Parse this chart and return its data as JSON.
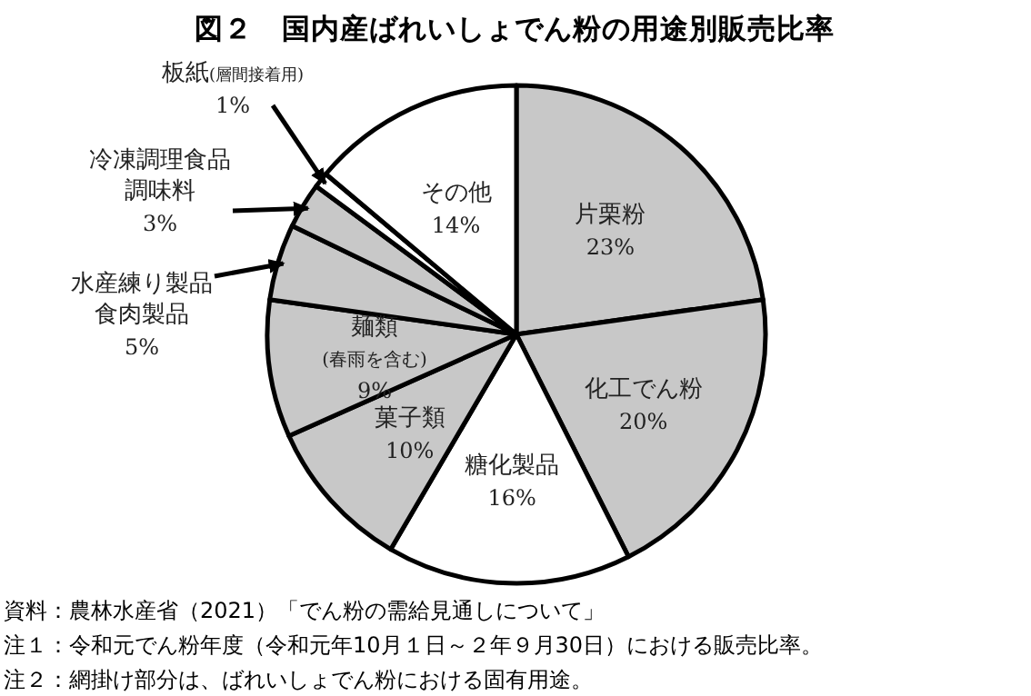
{
  "chart_data": {
    "type": "pie",
    "title": "図２　国内産ばれいしょでん粉の用途別販売比率",
    "categories": [
      "片栗粉",
      "化工でん粉",
      "糖化製品",
      "菓子類",
      "麺類(春雨を含む)",
      "水産練り製品食肉製品",
      "冷凍調理食品調味料",
      "板紙(層間接着用)",
      "その他"
    ],
    "values": [
      23,
      20,
      16,
      10,
      9,
      5,
      3,
      1,
      14
    ],
    "value_labels": [
      "23%",
      "20%",
      "16%",
      "10%",
      "9%",
      "5%",
      "3%",
      "1%",
      "14%"
    ],
    "colors": [
      "#c8c8c8",
      "#c8c8c8",
      "#ffffff",
      "#c8c8c8",
      "#c8c8c8",
      "#c8c8c8",
      "#c8c8c8",
      "#ffffff",
      "#ffffff"
    ],
    "annotations": [
      "資料：農林水産省（2021）「でん粉の需給見通しについて」",
      "注１：令和元でん粉年度（令和元年10月１日～２年９月30日）における販売比率。",
      "注２：網掛け部分は、ばれいしょでん粉における固有用途。"
    ]
  }
}
